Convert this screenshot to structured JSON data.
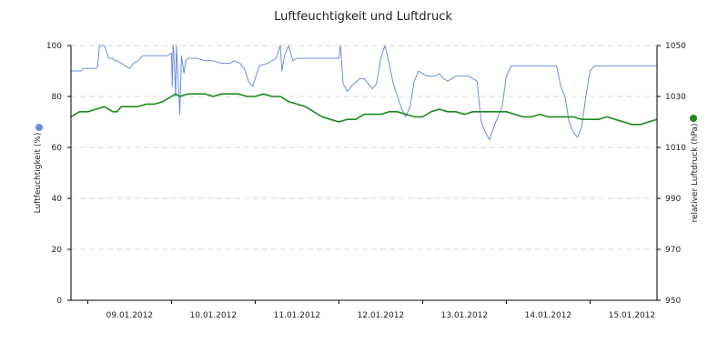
{
  "chart_data": {
    "type": "line",
    "title": "Luftfeuchtigkeit und Luftdruck",
    "x_tick_labels": [
      "09.01.2012",
      "10.01.2012",
      "11.01.2012",
      "12.01.2012",
      "13.01.2012",
      "14.01.2012",
      "15.01.2012"
    ],
    "xlim_days": [
      8.8,
      15.8
    ],
    "grid": true,
    "legend": "axis markers",
    "axes": {
      "left": {
        "label": "Luftfeuchtigkeit (%)",
        "ylim": [
          0,
          100
        ],
        "ticks": [
          0,
          20,
          40,
          60,
          80,
          100
        ]
      },
      "right": {
        "label": "relativer Luftdruck (hPa)",
        "ylim": [
          950,
          1050
        ],
        "ticks": [
          950,
          970,
          990,
          1010,
          1030,
          1050
        ]
      }
    },
    "series": [
      {
        "axis": "left",
        "color": "#6b8de0",
        "x": [
          8.8,
          8.92,
          8.95,
          9.05,
          9.1,
          9.12,
          9.14,
          9.2,
          9.25,
          9.3,
          9.32,
          9.35,
          9.4,
          9.45,
          9.5,
          9.55,
          9.6,
          9.66,
          9.72,
          9.78,
          9.88,
          9.95,
          10.0,
          10.01,
          10.02,
          10.03,
          10.05,
          10.06,
          10.1,
          10.12,
          10.15,
          10.17,
          10.2,
          10.3,
          10.4,
          10.5,
          10.6,
          10.7,
          10.75,
          10.82,
          10.87,
          10.92,
          10.97,
          11.05,
          11.15,
          11.25,
          11.3,
          11.32,
          11.35,
          11.4,
          11.45,
          11.5,
          11.6,
          11.7,
          11.8,
          11.9,
          12.0,
          12.02,
          12.05,
          12.1,
          12.15,
          12.25,
          12.3,
          12.35,
          12.4,
          12.45,
          12.5,
          12.55,
          12.6,
          12.65,
          12.7,
          12.75,
          12.8,
          12.85,
          12.9,
          12.95,
          13.0,
          13.05,
          13.1,
          13.15,
          13.2,
          13.25,
          13.3,
          13.4,
          13.5,
          13.55,
          13.6,
          13.65,
          13.7,
          13.75,
          13.8,
          13.85,
          13.9,
          13.95,
          14.0,
          14.03,
          14.06,
          14.08,
          14.1,
          14.15,
          14.2,
          14.25,
          14.3,
          14.35,
          14.4,
          14.45,
          14.5,
          14.55,
          14.6,
          14.65,
          14.7,
          14.75,
          14.8,
          14.85,
          14.9,
          14.95,
          15.0,
          15.05,
          15.1,
          15.15,
          15.2,
          15.25,
          15.3,
          15.35,
          15.4,
          15.45,
          15.5,
          15.55,
          15.6,
          15.65,
          15.7,
          15.75,
          15.8
        ],
        "y": [
          90,
          90,
          91,
          91,
          91,
          92,
          100,
          100,
          95,
          95,
          94,
          94,
          93,
          92,
          91,
          93,
          94,
          96,
          96,
          96,
          96,
          96,
          97,
          84,
          100,
          96,
          80,
          100,
          73,
          96,
          89,
          94,
          95,
          95,
          94,
          94,
          93,
          93,
          94,
          93,
          91,
          86,
          84,
          92,
          93,
          95,
          100,
          90,
          96,
          100,
          94,
          95,
          95,
          95,
          95,
          95,
          95,
          100,
          85,
          82,
          84,
          87,
          87,
          85,
          83,
          85,
          95,
          100,
          93,
          85,
          80,
          75,
          72,
          76,
          86,
          90,
          89,
          88,
          88,
          88,
          89,
          87,
          86,
          88,
          88,
          88,
          87,
          86,
          70,
          66,
          63,
          68,
          72,
          76,
          88,
          90,
          92,
          92,
          92,
          92,
          92,
          92,
          92,
          92,
          92,
          92,
          92,
          92,
          92,
          84,
          80,
          70,
          66,
          64,
          68,
          80,
          90,
          92,
          92,
          92,
          92,
          92,
          92,
          92,
          92,
          92,
          92,
          92,
          92,
          92,
          92,
          92,
          92
        ]
      },
      {
        "axis": "right",
        "color": "#1a8c1a",
        "x": [
          8.8,
          8.9,
          9.0,
          9.1,
          9.2,
          9.3,
          9.35,
          9.4,
          9.5,
          9.6,
          9.7,
          9.8,
          9.9,
          10.0,
          10.05,
          10.1,
          10.2,
          10.3,
          10.4,
          10.5,
          10.6,
          10.7,
          10.8,
          10.9,
          11.0,
          11.1,
          11.2,
          11.3,
          11.4,
          11.5,
          11.6,
          11.7,
          11.8,
          11.9,
          12.0,
          12.1,
          12.2,
          12.3,
          12.4,
          12.5,
          12.6,
          12.7,
          12.8,
          12.9,
          13.0,
          13.1,
          13.2,
          13.3,
          13.4,
          13.5,
          13.6,
          13.7,
          13.8,
          13.9,
          14.0,
          14.1,
          14.2,
          14.3,
          14.4,
          14.5,
          14.6,
          14.7,
          14.8,
          14.9,
          15.0,
          15.1,
          15.2,
          15.3,
          15.4,
          15.5,
          15.6,
          15.7,
          15.8
        ],
        "y": [
          1022,
          1024,
          1024,
          1025,
          1026,
          1024,
          1024,
          1026,
          1026,
          1026,
          1027,
          1027,
          1028,
          1030,
          1031,
          1030,
          1031,
          1031,
          1031,
          1030,
          1031,
          1031,
          1031,
          1030,
          1030,
          1031,
          1030,
          1030,
          1028,
          1027,
          1026,
          1024,
          1022,
          1021,
          1020,
          1021,
          1021,
          1023,
          1023,
          1023,
          1024,
          1024,
          1023,
          1022,
          1022,
          1024,
          1025,
          1024,
          1024,
          1023,
          1024,
          1024,
          1024,
          1024,
          1024,
          1023,
          1022,
          1022,
          1023,
          1022,
          1022,
          1022,
          1022,
          1021,
          1021,
          1021,
          1022,
          1021,
          1020,
          1019,
          1019,
          1020,
          1021
        ]
      }
    ]
  }
}
